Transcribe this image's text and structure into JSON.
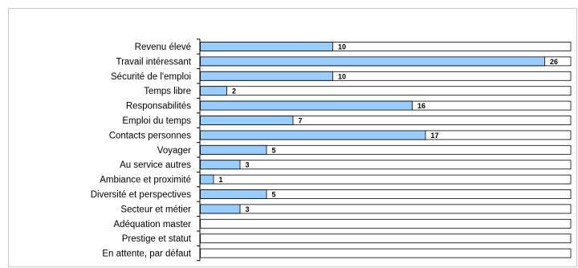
{
  "chart_data": {
    "type": "bar",
    "orientation": "horizontal",
    "categories": [
      "Revenu élevé",
      "Travail intéressant",
      "Sécurité de l'emploi",
      "Temps libre",
      "Responsabilités",
      "Emploi du temps",
      "Contacts personnes",
      "Voyager",
      "Au service autres",
      "Ambiance et proximité",
      "Diversité et perspectives",
      "Secteur et métier",
      "Adéquation master",
      "Prestige et statut",
      "En attente, par défaut"
    ],
    "values": [
      10,
      26,
      10,
      2,
      16,
      7,
      17,
      5,
      3,
      1,
      5,
      3,
      0,
      0,
      0
    ],
    "data_labels": [
      "10",
      "26",
      "10",
      "2",
      "16",
      "7",
      "17",
      "5",
      "3",
      "1",
      "5",
      "3",
      "",
      "",
      ""
    ],
    "xlim": [
      0,
      28
    ],
    "colors": {
      "bar_fill": "#99ccff",
      "bar_stroke": "#000000",
      "track_fill": "#ffffff"
    },
    "grid": false,
    "legend": "none"
  }
}
